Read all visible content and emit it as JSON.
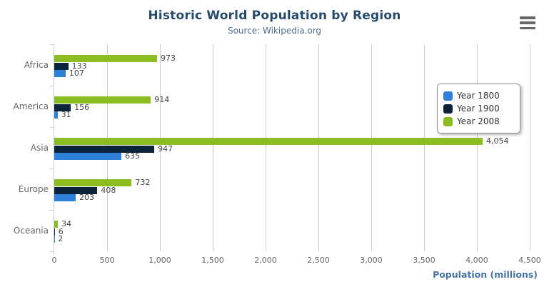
{
  "header": {
    "title": "Historic World Population by Region",
    "subtitle": "Source: Wikipedia.org"
  },
  "export_menu": {
    "icon": "hamburger-icon"
  },
  "chart_data": {
    "type": "bar",
    "orientation": "horizontal",
    "title": "Historic World Population by Region",
    "subtitle": "Source: Wikipedia.org",
    "categories": [
      "Africa",
      "America",
      "Asia",
      "Europe",
      "Oceania"
    ],
    "series": [
      {
        "name": "Year 1800",
        "color": "#2f7ed8",
        "values": [
          107,
          31,
          635,
          203,
          2
        ]
      },
      {
        "name": "Year 1900",
        "color": "#0d233a",
        "values": [
          133,
          156,
          947,
          408,
          6
        ]
      },
      {
        "name": "Year 2008",
        "color": "#8bbc21",
        "values": [
          973,
          914,
          4054,
          732,
          34
        ]
      }
    ],
    "bar_display_order_top_to_bottom": [
      "Year 2008",
      "Year 1900",
      "Year 1800"
    ],
    "xlabel": "Population (millions)",
    "ylabel": "",
    "xlim": [
      0,
      4500
    ],
    "ticks": [
      0,
      500,
      1000,
      1500,
      2000,
      2500,
      3000,
      3500,
      4000,
      4500
    ],
    "tick_labels": [
      "0",
      "500",
      "1,000",
      "1,500",
      "2,000",
      "2,500",
      "3,000",
      "3,500",
      "4,000",
      "4,500"
    ],
    "grid": true,
    "legend_position": "right",
    "data_labels": true
  },
  "colors": {
    "title": "#274b6d",
    "subtitle": "#4d6e8f",
    "axis_title": "#4572a7",
    "tick_label": "#666666",
    "category_label": "#666666",
    "data_label": "#454545",
    "gridline": "#cccccc",
    "axis_line": "#c0d0e0",
    "legend_border": "#909090",
    "menu_icon": "#666666"
  }
}
